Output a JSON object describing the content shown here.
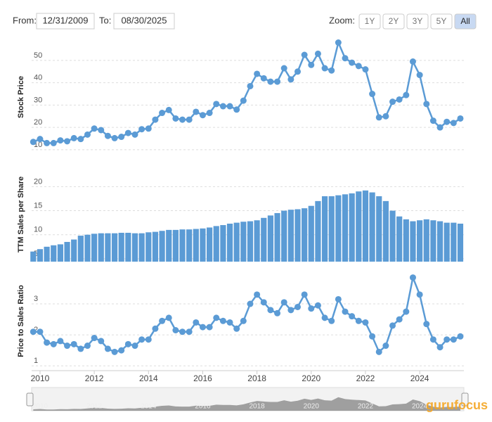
{
  "controls": {
    "from_label": "From:",
    "from_date": "12/31/2009",
    "to_label": "To:",
    "to_date": "08/30/2025",
    "zoom_label": "Zoom:",
    "zoom_options": [
      "1Y",
      "2Y",
      "3Y",
      "5Y",
      "All"
    ],
    "zoom_active": "All"
  },
  "logo": "gurufocus",
  "chart_data": [
    {
      "type": "line",
      "ylabel": "Stock Price",
      "color": "#5b9bd5",
      "grid": true,
      "x": [
        2009.75,
        2010,
        2010.25,
        2010.5,
        2010.75,
        2011,
        2011.25,
        2011.5,
        2011.75,
        2012,
        2012.25,
        2012.5,
        2012.75,
        2013,
        2013.25,
        2013.5,
        2013.75,
        2014,
        2014.25,
        2014.5,
        2014.75,
        2015,
        2015.25,
        2015.5,
        2015.75,
        2016,
        2016.25,
        2016.5,
        2016.75,
        2017,
        2017.25,
        2017.5,
        2017.75,
        2018,
        2018.25,
        2018.5,
        2018.75,
        2019,
        2019.25,
        2019.5,
        2019.75,
        2020,
        2020.25,
        2020.5,
        2020.75,
        2021,
        2021.25,
        2021.5,
        2021.75,
        2022,
        2022.25,
        2022.5,
        2022.75,
        2023,
        2023.25,
        2023.5,
        2023.75,
        2024,
        2024.25,
        2024.5,
        2024.75,
        2025,
        2025.25,
        2025.5
      ],
      "xlim": [
        2009.69,
        2025.63
      ],
      "xticks": [
        2010,
        2012,
        2014,
        2016,
        2018,
        2020,
        2022,
        2024
      ],
      "values": [
        13.5,
        14.8,
        13,
        13,
        14.2,
        13.8,
        15.2,
        14.8,
        16.8,
        19.5,
        18.8,
        16.2,
        15.2,
        15.8,
        17.5,
        16.8,
        19.2,
        19.5,
        23.5,
        26.5,
        27.8,
        24,
        23.5,
        23.5,
        27,
        25.5,
        26.5,
        30.5,
        29.5,
        29.5,
        28,
        32,
        38.5,
        44,
        42,
        40.5,
        40.5,
        46.5,
        41.5,
        45,
        52.5,
        48,
        53,
        46.5,
        45.5,
        58,
        51,
        49,
        47.5,
        46,
        35,
        24.5,
        25,
        31.5,
        32.5,
        34.5,
        49.5,
        43.5,
        30.5,
        23,
        20,
        22.5,
        22,
        24
      ],
      "ylim": [
        8.4,
        58.8
      ],
      "yticks": [
        10,
        20,
        30,
        40,
        50
      ]
    },
    {
      "type": "bar",
      "ylabel": "TTM Sales per Share",
      "color": "#5b9bd5",
      "grid": true,
      "values": [
        6.5,
        7,
        7.5,
        7.8,
        8,
        8.5,
        9,
        9.8,
        10,
        10.2,
        10.3,
        10.3,
        10.3,
        10.4,
        10.4,
        10.3,
        10.3,
        10.5,
        10.6,
        10.8,
        11,
        11,
        11.1,
        11.1,
        11.2,
        11.3,
        11.5,
        11.8,
        12,
        12.3,
        12.5,
        12.7,
        12.8,
        13,
        13.5,
        14,
        14.5,
        15,
        15.2,
        15.3,
        15.5,
        16,
        17,
        18,
        18,
        18.2,
        18.4,
        18.6,
        19,
        19.2,
        18.8,
        18,
        17,
        15,
        13.8,
        13.2,
        12.8,
        13,
        13.2,
        13,
        12.8,
        12.5,
        12.5,
        12.3
      ],
      "ylim": [
        4.4,
        24
      ],
      "yticks": [
        5,
        10,
        15,
        20
      ]
    },
    {
      "type": "line",
      "ylabel": "Price to Sales Ratio",
      "color": "#5b9bd5",
      "grid": true,
      "values": [
        2.1,
        2.1,
        1.75,
        1.7,
        1.8,
        1.65,
        1.7,
        1.55,
        1.65,
        1.9,
        1.8,
        1.55,
        1.45,
        1.5,
        1.7,
        1.65,
        1.85,
        1.85,
        2.2,
        2.45,
        2.55,
        2.15,
        2.1,
        2.1,
        2.4,
        2.25,
        2.25,
        2.55,
        2.45,
        2.4,
        2.2,
        2.45,
        3,
        3.3,
        3.05,
        2.8,
        2.7,
        3.05,
        2.8,
        2.9,
        3.3,
        2.85,
        2.95,
        2.55,
        2.45,
        3.15,
        2.75,
        2.6,
        2.45,
        2.4,
        1.95,
        1.45,
        1.65,
        2.3,
        2.5,
        2.75,
        3.85,
        3.3,
        2.35,
        1.85,
        1.6,
        1.85,
        1.85,
        1.95
      ],
      "ylim": [
        0.89,
        4.0
      ],
      "yticks": [
        1,
        2,
        3
      ]
    }
  ]
}
